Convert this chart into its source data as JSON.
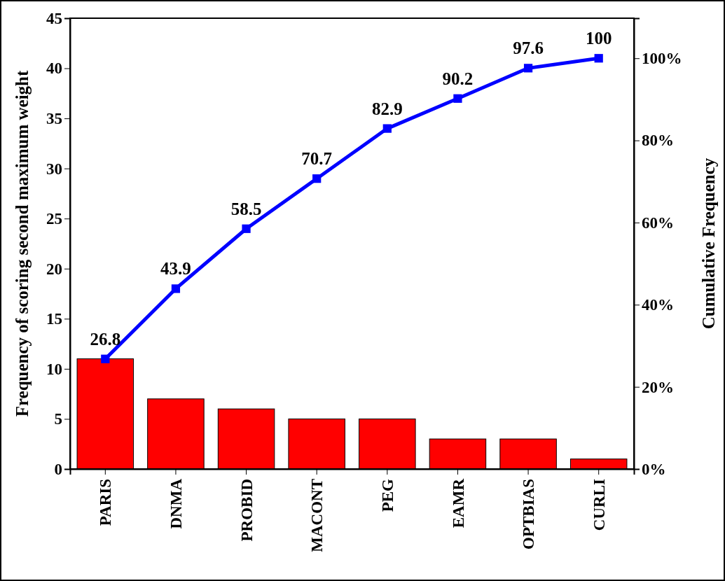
{
  "chart_data": {
    "type": "bar",
    "ylabel": "Frequency of scoring second maximum weight",
    "y2label": "Cumulative Frequency",
    "categories": [
      "PARIS",
      "DNMA",
      "PROBID",
      "MACONT",
      "PEG",
      "EAMR",
      "OPTBIAS",
      "CURLI"
    ],
    "series": [
      {
        "color": "#ff0000",
        "values": [
          11,
          7,
          6,
          5,
          5,
          3,
          3,
          1
        ]
      },
      {
        "type": "line",
        "axis": "y2",
        "color": "#0000ff",
        "marker": "square",
        "data_labels": true,
        "values": [
          26.8,
          43.9,
          58.5,
          70.7,
          82.9,
          90.2,
          97.6,
          100
        ]
      }
    ],
    "ylim": [
      0,
      45
    ],
    "yticks": [
      0,
      5,
      10,
      15,
      20,
      25,
      30,
      35,
      40,
      45
    ],
    "y2lim": [
      0,
      109.756
    ],
    "y2ticks": [
      {
        "value": 0,
        "label": "0%"
      },
      {
        "value": 20,
        "label": "20%"
      },
      {
        "value": 40,
        "label": "40%"
      },
      {
        "value": 60,
        "label": "60%"
      },
      {
        "value": 80,
        "label": "80%"
      },
      {
        "value": 100,
        "label": "100%"
      }
    ],
    "grid": false
  }
}
